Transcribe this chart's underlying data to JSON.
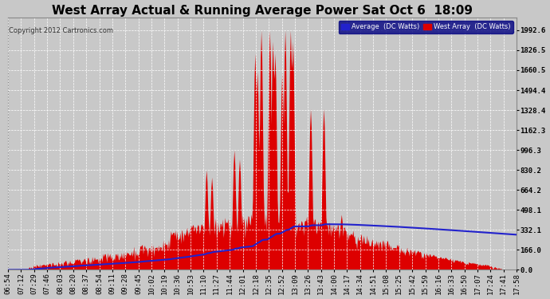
{
  "title": "West Array Actual & Running Average Power Sat Oct 6  18:09",
  "copyright": "Copyright 2012 Cartronics.com",
  "legend_avg": "Average  (DC Watts)",
  "legend_west": "West Array  (DC Watts)",
  "background_color": "#c8c8c8",
  "plot_bg_color": "#c8c8c8",
  "yticks": [
    0.0,
    166.0,
    332.1,
    498.1,
    664.2,
    830.2,
    996.3,
    1162.3,
    1328.4,
    1494.4,
    1660.5,
    1826.5,
    1992.6
  ],
  "ymax": 2100,
  "x_labels": [
    "06:54",
    "07:12",
    "07:29",
    "07:46",
    "08:03",
    "08:20",
    "08:37",
    "08:54",
    "09:11",
    "09:28",
    "09:45",
    "10:02",
    "10:19",
    "10:36",
    "10:53",
    "11:10",
    "11:27",
    "11:44",
    "12:01",
    "12:18",
    "12:35",
    "12:52",
    "13:09",
    "13:26",
    "13:43",
    "14:00",
    "14:17",
    "14:34",
    "14:51",
    "15:08",
    "15:25",
    "15:42",
    "15:59",
    "16:16",
    "16:33",
    "16:50",
    "17:07",
    "17:24",
    "17:41",
    "17:58"
  ],
  "fill_color": "#dd0000",
  "line_color": "#2222cc",
  "grid_color": "#ffffff",
  "title_color": "#000000",
  "title_fontsize": 11,
  "tick_fontsize": 6.5,
  "n_points": 660
}
